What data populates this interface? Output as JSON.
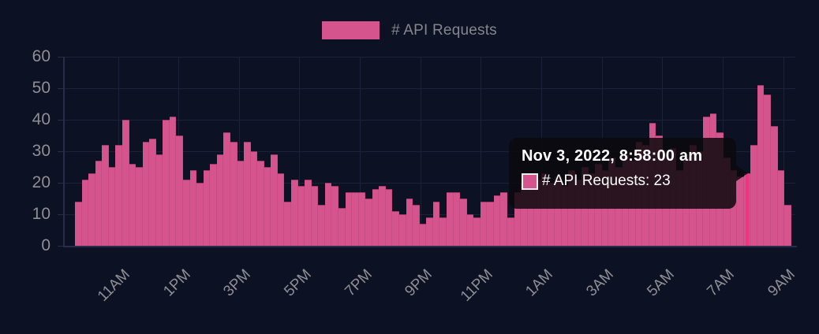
{
  "legend": {
    "label": "# API Requests"
  },
  "tooltip": {
    "title": "Nov 3, 2022, 8:58:00 am",
    "series_line": "# API Requests: 23",
    "series_label": "# API Requests",
    "value": 23
  },
  "chart_data": {
    "type": "bar",
    "series_name": "# API Requests",
    "x_tick_labels": [
      "11AM",
      "1PM",
      "3PM",
      "5PM",
      "7PM",
      "9PM",
      "11PM",
      "1AM",
      "3AM",
      "5AM",
      "7AM",
      "9AM"
    ],
    "y_ticks": [
      0,
      10,
      20,
      30,
      40,
      50,
      60
    ],
    "ylim": [
      0,
      60
    ],
    "grid": true,
    "legend_position": "top-center",
    "values": [
      14,
      21,
      23,
      27,
      32,
      25,
      32,
      40,
      26,
      25,
      33,
      34,
      29,
      40,
      41,
      35,
      21,
      24,
      20,
      24,
      26,
      29,
      36,
      33,
      27,
      33,
      30,
      27,
      25,
      29,
      23,
      14,
      21,
      19,
      21,
      19,
      13,
      20,
      19,
      12,
      17,
      17,
      17,
      15,
      18,
      19,
      18,
      11,
      10,
      15,
      13,
      7,
      9,
      14,
      9,
      17,
      17,
      15,
      10,
      9,
      14,
      14,
      16,
      17,
      9,
      17,
      20,
      18,
      21,
      23,
      20,
      22,
      19,
      24,
      21,
      25,
      23,
      26,
      24,
      28,
      25,
      29,
      27,
      33,
      32,
      39,
      35,
      28,
      31,
      24,
      28,
      32,
      30,
      41,
      42,
      36,
      28,
      24,
      22,
      23,
      32,
      51,
      48,
      38,
      24,
      13
    ],
    "highlight_index": 99,
    "highlight_value": 23,
    "colors": {
      "background": "#0d1124",
      "bar": "#d6548d",
      "bar_highlight": "#f0347f",
      "grid": "#1b2138",
      "axis": "#272c48",
      "tick_label": "#8e8e93",
      "legend_label": "#85858c",
      "tooltip_background": "rgba(10,9,13,0.85)",
      "tooltip_text": "#ffffff"
    }
  }
}
